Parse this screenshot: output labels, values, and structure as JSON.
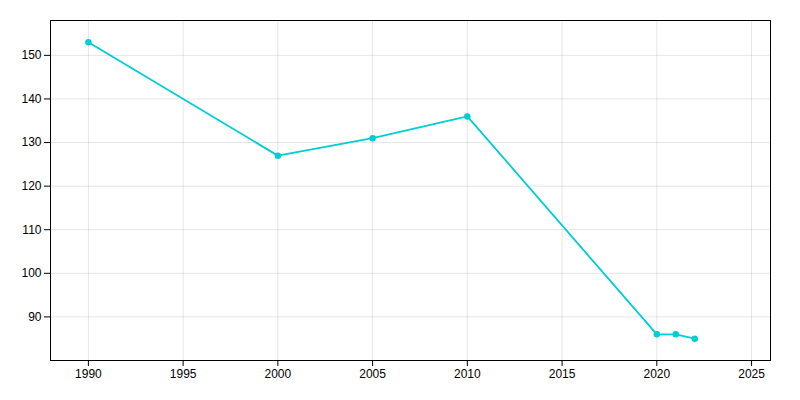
{
  "chart_data": {
    "type": "line",
    "x": [
      1990,
      2000,
      2005,
      2010,
      2020,
      2021,
      2022
    ],
    "values": [
      153,
      127,
      131,
      136,
      86,
      86,
      85
    ],
    "color": "#00CED1",
    "marker": "circle",
    "xlim": [
      1988,
      2026
    ],
    "ylim": [
      80,
      158
    ],
    "xticks": [
      1990,
      1995,
      2000,
      2005,
      2010,
      2015,
      2020,
      2025
    ],
    "yticks": [
      90,
      100,
      110,
      120,
      130,
      140,
      150
    ],
    "grid": true
  }
}
